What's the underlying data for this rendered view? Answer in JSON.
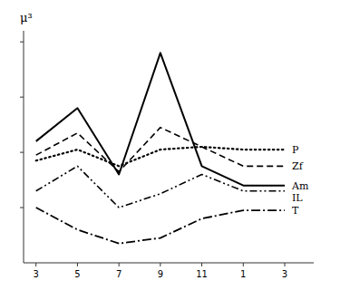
{
  "chart_data": {
    "type": "line",
    "ylabel": "μ³",
    "categories": [
      "3",
      "5",
      "7",
      "9",
      "11",
      "1",
      "3"
    ],
    "series": [
      {
        "name": "Am",
        "color": "#000000",
        "line_style": "solid",
        "values": [
          220,
          280,
          160,
          380,
          175,
          140,
          140
        ]
      },
      {
        "name": "Zf",
        "color": "#000000",
        "line_style": "dashed",
        "values": [
          195,
          235,
          165,
          245,
          210,
          175,
          175
        ]
      },
      {
        "name": "P",
        "color": "#000000",
        "line_style": "dotted",
        "values": [
          185,
          205,
          175,
          205,
          210,
          205,
          205
        ]
      },
      {
        "name": "IL",
        "color": "#000000",
        "line_style": "dashdotdot",
        "values": [
          130,
          175,
          100,
          125,
          160,
          130,
          130
        ]
      },
      {
        "name": "T",
        "color": "#000000",
        "line_style": "longdashdot",
        "values": [
          100,
          60,
          35,
          45,
          80,
          95,
          95
        ]
      }
    ],
    "ylim": [
      0,
      420
    ],
    "yticks": [
      100,
      200,
      300,
      400
    ],
    "tick_labels": "x",
    "grid": false
  }
}
